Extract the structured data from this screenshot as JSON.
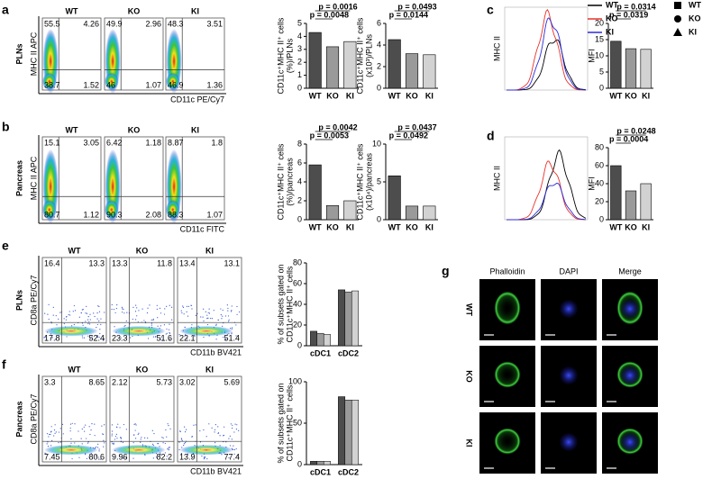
{
  "figure": {
    "panel_labels": [
      "a",
      "b",
      "c",
      "d",
      "e",
      "f",
      "g"
    ],
    "categories": [
      "WT",
      "KO",
      "KI"
    ],
    "group_colors": [
      "#4d4d4d",
      "#9a9a9a",
      "#d2d2d2"
    ],
    "flow": [
      {
        "tissue": "PLNs",
        "y_label": "MHC II APC",
        "x_label": "CD11c PE/Cy7",
        "plots": [
          {
            "title": "WT",
            "quadrants": [
              55.5,
              4.26,
              38.7,
              1.52
            ]
          },
          {
            "title": "KO",
            "quadrants": [
              49.9,
              2.96,
              46,
              1.07
            ]
          },
          {
            "title": "KI",
            "quadrants": [
              48.3,
              3.51,
              46.9,
              1.36
            ]
          }
        ]
      },
      {
        "tissue": "Pancreas",
        "y_label": "MHC II APC",
        "x_label": "CD11c FITC",
        "plots": [
          {
            "title": "WT",
            "quadrants": [
              15.1,
              3.05,
              80.7,
              1.12
            ]
          },
          {
            "title": "KO",
            "quadrants": [
              6.42,
              1.18,
              90.3,
              2.08
            ]
          },
          {
            "title": "KI",
            "quadrants": [
              8.87,
              1.8,
              88.3,
              1.07
            ]
          }
        ]
      },
      {
        "tissue": "PLNs",
        "y_label": "CD8a PE/Cy7",
        "x_label": "CD11b BV421",
        "plots": [
          {
            "title": "WT",
            "quadrants": [
              16.4,
              13.3,
              17.8,
              52.4
            ]
          },
          {
            "title": "KO",
            "quadrants": [
              13.3,
              11.8,
              23.3,
              51.6
            ]
          },
          {
            "title": "KI",
            "quadrants": [
              13.4,
              13.1,
              22.1,
              51.4
            ]
          }
        ]
      },
      {
        "tissue": "Pancreas",
        "y_label": "CD8a PE/Cy7",
        "x_label": "CD11b BV421",
        "plots": [
          {
            "title": "WT",
            "quadrants": [
              3.3,
              8.65,
              7.45,
              80.6
            ]
          },
          {
            "title": "KO",
            "quadrants": [
              2.12,
              5.73,
              9.96,
              82.2
            ]
          },
          {
            "title": "KI",
            "quadrants": [
              3.02,
              5.69,
              13.9,
              77.4
            ]
          }
        ]
      }
    ],
    "bar_charts": [
      {
        "y_label": [
          "CD11c⁺MHC II⁺ cells",
          "(%)/PLNs"
        ],
        "values": [
          4.3,
          3.2,
          3.6
        ],
        "ylim": [
          0,
          5
        ],
        "yticks": [
          0,
          1,
          2,
          3,
          4,
          5
        ],
        "p_values": [
          "p = 0.0016",
          "p = 0.0048"
        ]
      },
      {
        "y_label": [
          "CD11c⁺MHC II⁺ cells",
          "(x10³)/PLNs"
        ],
        "values": [
          4.5,
          3.2,
          3.1
        ],
        "ylim": [
          0,
          6
        ],
        "yticks": [
          0,
          2,
          4,
          6
        ],
        "p_values": [
          "p = 0.0493",
          "p = 0.0144"
        ]
      },
      {
        "y_label": [
          "MFI"
        ],
        "values": [
          14.5,
          12.2,
          12
        ],
        "ylim": [
          0,
          20
        ],
        "yticks": [
          0,
          5,
          10,
          15,
          20
        ],
        "p_values": [
          "p = 0.0314",
          "p = 0.0319"
        ]
      },
      {
        "y_label": [
          "CD11c⁺MHC II⁺ cells",
          "(%)/pancreas"
        ],
        "values": [
          5.8,
          1.5,
          2
        ],
        "ylim": [
          0,
          8
        ],
        "yticks": [
          0,
          2,
          4,
          6,
          8
        ],
        "p_values": [
          "p = 0.0042",
          "p = 0.0053"
        ]
      },
      {
        "y_label": [
          "CD11c⁺MHC II⁺ cells",
          "(x10⁴)/pancreas"
        ],
        "values": [
          5.8,
          1.8,
          1.8
        ],
        "ylim": [
          0,
          10
        ],
        "yticks": [
          0,
          5,
          10
        ],
        "p_values": [
          "p = 0.0437",
          "p = 0.0492"
        ]
      },
      {
        "y_label": [
          "MFI"
        ],
        "values": [
          60,
          32,
          40
        ],
        "ylim": [
          0,
          80
        ],
        "yticks": [
          0,
          20,
          40,
          60,
          80
        ],
        "p_values": [
          "p = 0.0248",
          "p = 0.0004"
        ]
      }
    ],
    "grouped_charts": [
      {
        "y_label": [
          "% of subsets gated on",
          "CD11c⁺MHC II⁺ cells"
        ],
        "categories": [
          "cDC1",
          "cDC2"
        ],
        "values": [
          [
            14,
            12,
            11
          ],
          [
            54,
            52,
            53
          ]
        ],
        "ylim": [
          0,
          80
        ],
        "yticks": [
          0,
          20,
          40,
          60,
          80
        ]
      },
      {
        "y_label": [
          "% of subsets gated on",
          "CD11c⁺MHC II⁺ cells"
        ],
        "categories": [
          "cDC1",
          "cDC2"
        ],
        "values": [
          [
            4,
            4,
            4
          ],
          [
            82,
            78,
            78
          ]
        ],
        "ylim": [
          0,
          100
        ],
        "yticks": [
          0,
          50,
          100
        ]
      }
    ],
    "histograms": [
      {
        "y_label": "MHC II"
      },
      {
        "y_label": "MHC II"
      }
    ],
    "legend_lines": [
      {
        "name": "WT",
        "color": "#000000"
      },
      {
        "name": "KO",
        "color": "#e8322b"
      },
      {
        "name": "KI",
        "color": "#2b2bd8"
      }
    ],
    "legend_shapes": [
      {
        "name": "WT",
        "shape": "square"
      },
      {
        "name": "KO",
        "shape": "circle"
      },
      {
        "name": "KI",
        "shape": "triangle"
      }
    ],
    "microscopy": {
      "columns": [
        "Phalloidin",
        "DAPI",
        "Merge"
      ],
      "rows": [
        "WT",
        "KO",
        "KI"
      ]
    }
  }
}
